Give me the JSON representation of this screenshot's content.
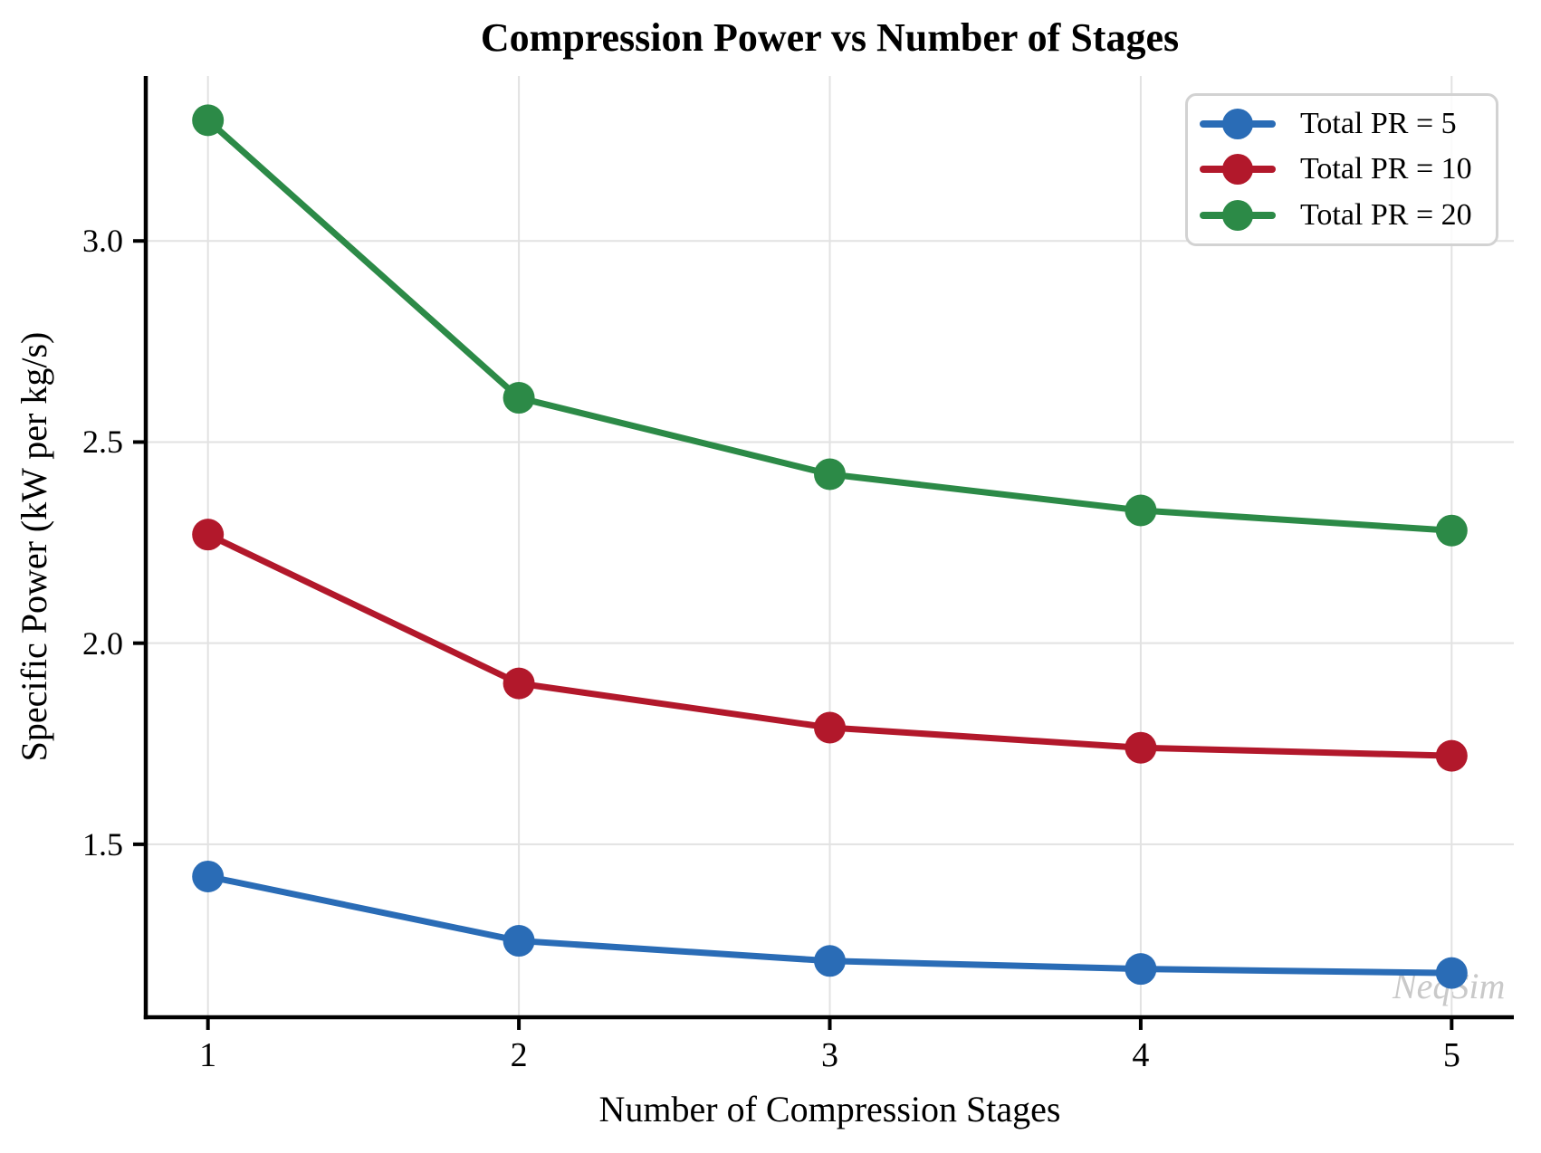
{
  "chart_data": {
    "type": "line",
    "title": "Compression Power vs Number of Stages",
    "xlabel": "Number of Compression Stages",
    "ylabel": "Specific Power (kW per kg/s)",
    "watermark": "NeqSim",
    "x": [
      1,
      2,
      3,
      4,
      5
    ],
    "series": [
      {
        "name": "Total PR = 5",
        "color": "#2a6cb6",
        "values": [
          1.42,
          1.26,
          1.21,
          1.19,
          1.18
        ]
      },
      {
        "name": "Total PR = 10",
        "color": "#b2182b",
        "values": [
          2.27,
          1.9,
          1.79,
          1.74,
          1.72
        ]
      },
      {
        "name": "Total PR = 20",
        "color": "#2c8a47",
        "values": [
          3.3,
          2.61,
          2.42,
          2.33,
          2.28
        ]
      }
    ],
    "xticks": [
      1,
      2,
      3,
      4,
      5
    ],
    "xtick_labels": [
      "1",
      "2",
      "3",
      "4",
      "5"
    ],
    "yticks": [
      1.5,
      2.0,
      2.5,
      3.0
    ],
    "ytick_labels": [
      "1.5",
      "2.0",
      "2.5",
      "3.0"
    ],
    "xlim": [
      0.8,
      5.2
    ],
    "ylim": [
      1.07,
      3.41
    ],
    "grid": true,
    "grid_color": "#e2e2e2",
    "spine_color": "#000000",
    "legend_position": "upper right",
    "marker": "circle"
  }
}
